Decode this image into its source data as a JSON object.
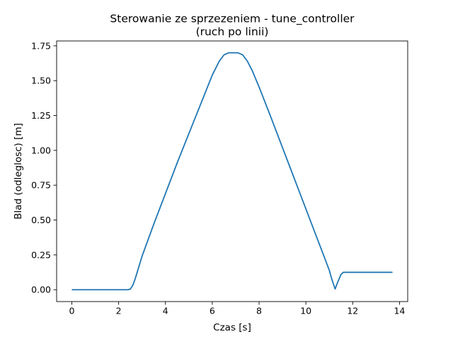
{
  "chart_data": {
    "type": "line",
    "title_line1": "Sterowanie ze sprzezeniem - tune_controller",
    "title_line2": "(ruch po linii)",
    "xlabel": "Czas [s]",
    "ylabel": "Blad (odleglosc) [m]",
    "xlim": [
      -0.65,
      14.35
    ],
    "ylim": [
      -0.085,
      1.785
    ],
    "x_ticks": [
      0,
      2,
      4,
      6,
      8,
      10,
      12,
      14
    ],
    "x_tick_labels": [
      "0",
      "2",
      "4",
      "6",
      "8",
      "10",
      "12",
      "14"
    ],
    "y_ticks": [
      0.0,
      0.25,
      0.5,
      0.75,
      1.0,
      1.25,
      1.5,
      1.75
    ],
    "y_tick_labels": [
      "0.00",
      "0.25",
      "0.50",
      "0.75",
      "1.00",
      "1.25",
      "1.50",
      "1.75"
    ],
    "grid": false,
    "series": [
      {
        "color": "#1f77b4",
        "points": [
          [
            0,
            0
          ],
          [
            0.5,
            0
          ],
          [
            1,
            0
          ],
          [
            1.5,
            0
          ],
          [
            2,
            0
          ],
          [
            2.4,
            0
          ],
          [
            2.5,
            0.005
          ],
          [
            2.6,
            0.03
          ],
          [
            2.7,
            0.075
          ],
          [
            2.8,
            0.13
          ],
          [
            3.0,
            0.24
          ],
          [
            3.5,
            0.47
          ],
          [
            4.0,
            0.69
          ],
          [
            4.5,
            0.91
          ],
          [
            5.0,
            1.12
          ],
          [
            5.5,
            1.33
          ],
          [
            6.0,
            1.54
          ],
          [
            6.3,
            1.64
          ],
          [
            6.5,
            1.685
          ],
          [
            6.7,
            1.7
          ],
          [
            7.1,
            1.7
          ],
          [
            7.3,
            1.685
          ],
          [
            7.5,
            1.64
          ],
          [
            7.7,
            1.575
          ],
          [
            8.0,
            1.455
          ],
          [
            8.5,
            1.24
          ],
          [
            9.0,
            1.02
          ],
          [
            9.5,
            0.8
          ],
          [
            10.0,
            0.58
          ],
          [
            10.5,
            0.36
          ],
          [
            11.0,
            0.14
          ],
          [
            11.1,
            0.08
          ],
          [
            11.25,
            0.005
          ],
          [
            11.35,
            0.05
          ],
          [
            11.5,
            0.11
          ],
          [
            11.6,
            0.125
          ],
          [
            12,
            0.125
          ],
          [
            12.5,
            0.125
          ],
          [
            13,
            0.125
          ],
          [
            13.7,
            0.125
          ]
        ]
      }
    ]
  }
}
